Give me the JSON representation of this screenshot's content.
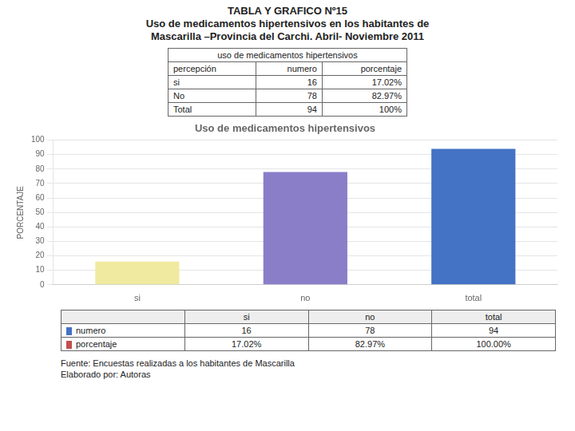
{
  "chart_data": {
    "type": "bar",
    "title": "Uso de medicamentos hipertensivos",
    "ylabel": "PORCENTAJE",
    "categories": [
      "si",
      "no",
      "total"
    ],
    "values": [
      16,
      78,
      94
    ],
    "colors": [
      "#F0EAA0",
      "#8B7EC8",
      "#4472C4"
    ],
    "ylim": [
      0,
      100
    ],
    "yticks": [
      0,
      10,
      20,
      30,
      40,
      50,
      60,
      70,
      80,
      90,
      100
    ],
    "grid": true,
    "annotations": {
      "heading": [
        "TABLA Y GRAFICO Nº15",
        "Uso de medicamentos hipertensivos en los habitantes de",
        "Mascarilla –Provincia del Carchi. Abril- Noviembre 2011"
      ],
      "summary_table": {
        "header": "uso de medicamentos hipertensivos",
        "columns": [
          "percepción",
          "numero",
          "porcentaje"
        ],
        "rows": [
          [
            "si",
            "16",
            "17.02%"
          ],
          [
            "No",
            "78",
            "82.97%"
          ],
          [
            "Total",
            "94",
            "100%"
          ]
        ]
      },
      "data_table": {
        "rows": [
          {
            "name": "numero",
            "color": "#4472C4",
            "cells": [
              "16",
              "78",
              "94"
            ]
          },
          {
            "name": "porcentaje",
            "color": "#C0504D",
            "cells": [
              "17.02%",
              "82.97%",
              "100.00%"
            ]
          }
        ]
      },
      "source": "Fuente: Encuestas realizadas a los habitantes de Mascarilla\nElaborado por: Autoras"
    }
  }
}
